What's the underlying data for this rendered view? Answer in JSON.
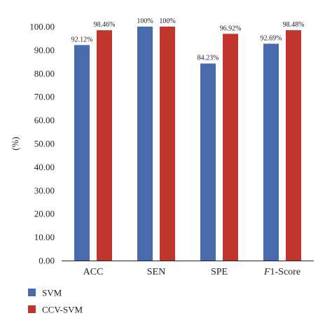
{
  "chart_data": {
    "type": "bar",
    "categories": [
      "ACC",
      "SEN",
      "SPE",
      "F1-Score"
    ],
    "series": [
      {
        "name": "SVM",
        "color": "#4a6aae",
        "values": [
          92.12,
          100,
          84.23,
          92.69
        ],
        "labels": [
          "92.12%",
          "100%",
          "84.23%",
          "92.69%"
        ]
      },
      {
        "name": "CCV-SVM",
        "color": "#c0362c",
        "values": [
          98.46,
          100,
          96.92,
          98.48
        ],
        "labels": [
          "98.46%",
          "100%",
          "96.92%",
          "98.48%"
        ]
      }
    ],
    "ylabel": "(%)",
    "ylim": [
      0,
      100
    ],
    "yticks": [
      "0.00",
      "10.00",
      "20.00",
      "30.00",
      "40.00",
      "50.00",
      "60.00",
      "70.00",
      "80.00",
      "90.00",
      "100.00"
    ],
    "grid": false,
    "legend_position": "bottom-left"
  }
}
